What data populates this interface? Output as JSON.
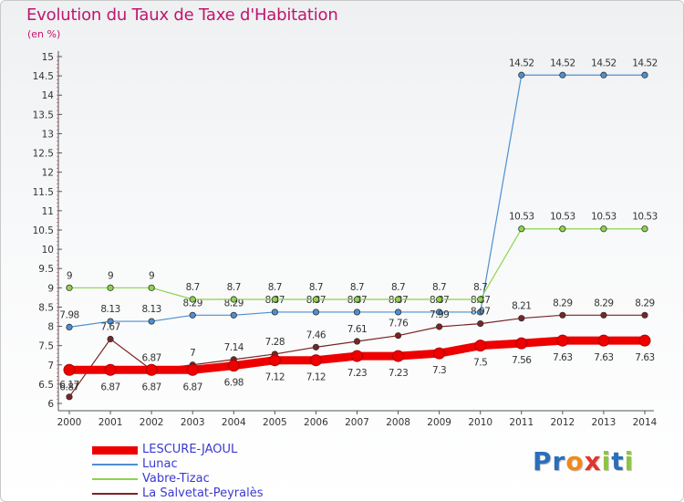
{
  "title": "Evolution du Taux de Taxe d'Habitation",
  "subtitle": "(en %)",
  "brand": {
    "text": "Proxiti",
    "letters": [
      {
        "ch": "P",
        "color": "#2b6fb8"
      },
      {
        "ch": "r",
        "color": "#2b6fb8"
      },
      {
        "ch": "o",
        "color": "#ef8a1a"
      },
      {
        "ch": "x",
        "color": "#e2342c"
      },
      {
        "ch": "i",
        "color": "#8cc63f"
      },
      {
        "ch": "t",
        "color": "#2b6fb8"
      },
      {
        "ch": "i",
        "color": "#8cc63f"
      }
    ]
  },
  "chart_data": {
    "type": "line",
    "title": "Evolution du Taux de Taxe d'Habitation",
    "ylabel": "(en %)",
    "xlabel": "",
    "x": [
      2000,
      2001,
      2002,
      2003,
      2004,
      2005,
      2006,
      2007,
      2008,
      2009,
      2010,
      2011,
      2012,
      2013,
      2014
    ],
    "x_tick_labels": [
      "2000",
      "2001",
      "2002",
      "2003",
      "2004",
      "2005",
      "2006",
      "2007",
      "2008",
      "2009",
      "2010",
      "2011",
      "2012",
      "2013",
      "2014"
    ],
    "ylim": [
      6,
      15
    ],
    "y_ticks": [
      6,
      6.5,
      7,
      7.5,
      8,
      8.5,
      9,
      9.5,
      10,
      10.5,
      11,
      11.5,
      12,
      12.5,
      13,
      13.5,
      14,
      14.5,
      15
    ],
    "y_tick_labels": [
      "6",
      "6.5",
      "7",
      "7.5",
      "8",
      "8.5",
      "9",
      "9.5",
      "10",
      "10.5",
      "11",
      "11.5",
      "12",
      "12.5",
      "13",
      "13.5",
      "14",
      "14.5",
      "15"
    ],
    "grid": false,
    "legend_position": "bottom-left",
    "series": [
      {
        "name": "LESCURE-JAOUL",
        "color": "#ee0000",
        "highlight": true,
        "values": [
          6.87,
          6.87,
          6.87,
          6.87,
          6.98,
          7.12,
          7.12,
          7.23,
          7.23,
          7.3,
          7.5,
          7.56,
          7.63,
          7.63,
          7.63
        ],
        "value_labels": [
          "6.87",
          "6.87",
          "6.87",
          "6.87",
          "6.98",
          "7.12",
          "7.12",
          "7.23",
          "7.23",
          "7.3",
          "7.5",
          "7.56",
          "7.63",
          "7.63",
          "7.63"
        ]
      },
      {
        "name": "Lunac",
        "color": "#4d8fd1",
        "highlight": false,
        "values": [
          7.98,
          8.13,
          8.13,
          8.29,
          8.29,
          8.37,
          8.37,
          8.37,
          8.37,
          8.37,
          8.37,
          14.52,
          14.52,
          14.52,
          14.52
        ],
        "value_labels": [
          "7.98",
          "8.13",
          "8.13",
          "8.29",
          "8.29",
          "8.37",
          "8.37",
          "8.37",
          "8.37",
          "8.37",
          "8.37",
          "14.52",
          "14.52",
          "14.52",
          "14.52"
        ]
      },
      {
        "name": "Vabre-Tizac",
        "color": "#8cd44a",
        "highlight": false,
        "values": [
          9,
          9,
          9,
          8.7,
          8.7,
          8.7,
          8.7,
          8.7,
          8.7,
          8.7,
          8.7,
          10.53,
          10.53,
          10.53,
          10.53
        ],
        "value_labels": [
          "9",
          "9",
          "9",
          "8.7",
          "8.7",
          "8.7",
          "8.7",
          "8.7",
          "8.7",
          "8.7",
          "8.7",
          "10.53",
          "10.53",
          "10.53",
          "10.53"
        ]
      },
      {
        "name": "La Salvetat-Peyralès",
        "color": "#7a2424",
        "highlight": false,
        "values": [
          6.17,
          7.67,
          6.87,
          7,
          7.14,
          7.28,
          7.46,
          7.61,
          7.76,
          7.99,
          8.07,
          8.21,
          8.29,
          8.29,
          8.29
        ],
        "value_labels": [
          "6.17",
          "7.67",
          "6.87",
          "7",
          "7.14",
          "7.28",
          "7.46",
          "7.61",
          "7.76",
          "7.99",
          "8.07",
          "8.21",
          "8.29",
          "8.29",
          "8.29"
        ]
      }
    ]
  }
}
